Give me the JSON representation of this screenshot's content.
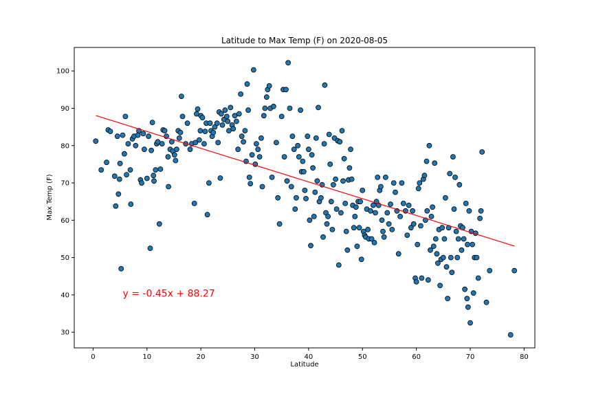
{
  "chart_data": {
    "type": "scatter",
    "title": "Latitude to Max Temp (F) on 2020-08-05",
    "xlabel": "Latitude",
    "ylabel": "Max Temp (F)",
    "xlim": [
      -3.5,
      82
    ],
    "ylim": [
      25.8,
      106.3
    ],
    "xticks": [
      0,
      10,
      20,
      30,
      40,
      50,
      60,
      70,
      80
    ],
    "yticks": [
      30,
      40,
      50,
      60,
      70,
      80,
      90,
      100
    ],
    "grid": false,
    "marker_color": "#1f77b4",
    "marker_edge": "#000000",
    "regression": {
      "equation": "y = -0.45x + 88.27",
      "slope": -0.45,
      "intercept": 88.27,
      "x_range": [
        0.5,
        78.2
      ],
      "color": "#ff0000",
      "label_x": 5.5,
      "label_y": 39.5
    },
    "points": [
      [
        0.5,
        81.2
      ],
      [
        1.5,
        73.5
      ],
      [
        2.5,
        75.5
      ],
      [
        2.8,
        84.2
      ],
      [
        3.2,
        83.8
      ],
      [
        4.0,
        71.8
      ],
      [
        4.2,
        63.8
      ],
      [
        4.5,
        82.5
      ],
      [
        4.7,
        67.0
      ],
      [
        4.9,
        71.0
      ],
      [
        5.0,
        75.2
      ],
      [
        5.2,
        47.0
      ],
      [
        5.5,
        82.8
      ],
      [
        5.8,
        77.8
      ],
      [
        6.0,
        87.8
      ],
      [
        6.2,
        72.2
      ],
      [
        6.5,
        80.5
      ],
      [
        6.9,
        73.5
      ],
      [
        7.0,
        64.3
      ],
      [
        7.3,
        81.8
      ],
      [
        7.6,
        82.5
      ],
      [
        7.9,
        80.0
      ],
      [
        8.3,
        82.8
      ],
      [
        8.5,
        84.0
      ],
      [
        8.8,
        70.8
      ],
      [
        9.0,
        70.0
      ],
      [
        9.3,
        83.2
      ],
      [
        9.5,
        79.0
      ],
      [
        10.0,
        71.2
      ],
      [
        10.3,
        82.5
      ],
      [
        10.6,
        52.5
      ],
      [
        10.8,
        78.7
      ],
      [
        11.0,
        86.2
      ],
      [
        11.2,
        72.0
      ],
      [
        11.3,
        70.5
      ],
      [
        11.6,
        73.5
      ],
      [
        11.8,
        80.5
      ],
      [
        12.0,
        81.0
      ],
      [
        12.3,
        59.0
      ],
      [
        12.5,
        73.7
      ],
      [
        12.8,
        80.5
      ],
      [
        13.0,
        84.2
      ],
      [
        13.3,
        84.0
      ],
      [
        13.6,
        82.5
      ],
      [
        13.9,
        77.0
      ],
      [
        14.0,
        69.0
      ],
      [
        14.3,
        79.0
      ],
      [
        14.6,
        81.0
      ],
      [
        14.8,
        78.5
      ],
      [
        15.1,
        77.5
      ],
      [
        15.3,
        76.0
      ],
      [
        15.5,
        79.0
      ],
      [
        15.8,
        84.0
      ],
      [
        16.0,
        82.0
      ],
      [
        16.2,
        83.5
      ],
      [
        16.4,
        93.2
      ],
      [
        16.6,
        87.8
      ],
      [
        17.2,
        80.5
      ],
      [
        17.5,
        86.0
      ],
      [
        18.0,
        79.0
      ],
      [
        18.3,
        80.5
      ],
      [
        18.8,
        64.5
      ],
      [
        19.0,
        80.8
      ],
      [
        19.2,
        88.5
      ],
      [
        19.4,
        89.8
      ],
      [
        19.7,
        81.5
      ],
      [
        19.9,
        84.0
      ],
      [
        20.0,
        88.0
      ],
      [
        20.3,
        87.5
      ],
      [
        20.6,
        80.5
      ],
      [
        20.8,
        83.8
      ],
      [
        21.0,
        86.0
      ],
      [
        21.2,
        61.5
      ],
      [
        21.5,
        70.0
      ],
      [
        21.7,
        86.0
      ],
      [
        21.9,
        84.0
      ],
      [
        22.1,
        82.5
      ],
      [
        22.3,
        83.5
      ],
      [
        22.6,
        85.0
      ],
      [
        23.0,
        86.0
      ],
      [
        23.2,
        80.8
      ],
      [
        23.4,
        89.0
      ],
      [
        23.6,
        71.3
      ],
      [
        23.8,
        88.5
      ],
      [
        24.0,
        85.5
      ],
      [
        24.3,
        87.0
      ],
      [
        24.5,
        89.5
      ],
      [
        24.8,
        87.8
      ],
      [
        25.0,
        86.5
      ],
      [
        25.2,
        84.0
      ],
      [
        25.5,
        90.2
      ],
      [
        25.8,
        85.5
      ],
      [
        26.0,
        84.5
      ],
      [
        26.3,
        88.0
      ],
      [
        26.6,
        86.5
      ],
      [
        26.9,
        79.0
      ],
      [
        27.1,
        88.5
      ],
      [
        27.4,
        93.8
      ],
      [
        27.6,
        82.5
      ],
      [
        27.9,
        81.0
      ],
      [
        28.2,
        84.0
      ],
      [
        28.4,
        75.8
      ],
      [
        28.6,
        96.5
      ],
      [
        28.8,
        89.5
      ],
      [
        29.0,
        71.5
      ],
      [
        29.2,
        69.8
      ],
      [
        29.5,
        77.5
      ],
      [
        29.8,
        100.3
      ],
      [
        30.1,
        75.0
      ],
      [
        30.3,
        80.5
      ],
      [
        30.6,
        79.0
      ],
      [
        30.9,
        77.0
      ],
      [
        31.2,
        82.0
      ],
      [
        31.4,
        69.0
      ],
      [
        31.7,
        88.0
      ],
      [
        31.9,
        90.0
      ],
      [
        32.2,
        93.0
      ],
      [
        32.4,
        95.0
      ],
      [
        32.7,
        96.0
      ],
      [
        32.9,
        90.0
      ],
      [
        33.2,
        71.5
      ],
      [
        33.5,
        90.5
      ],
      [
        34.0,
        80.8
      ],
      [
        34.3,
        66.0
      ],
      [
        34.6,
        59.0
      ],
      [
        35.0,
        87.8
      ],
      [
        35.3,
        95.0
      ],
      [
        35.5,
        77.0
      ],
      [
        35.8,
        95.0
      ],
      [
        36.0,
        70.5
      ],
      [
        36.2,
        102.2
      ],
      [
        36.5,
        90.0
      ],
      [
        36.8,
        69.0
      ],
      [
        37.0,
        82.5
      ],
      [
        37.3,
        79.0
      ],
      [
        37.5,
        63.0
      ],
      [
        37.7,
        66.0
      ],
      [
        38.0,
        80.0
      ],
      [
        38.2,
        77.0
      ],
      [
        38.5,
        89.5
      ],
      [
        38.7,
        73.0
      ],
      [
        38.9,
        75.8
      ],
      [
        39.1,
        73.0
      ],
      [
        39.3,
        68.0
      ],
      [
        39.5,
        65.8
      ],
      [
        39.8,
        82.5
      ],
      [
        40.0,
        79.0
      ],
      [
        40.2,
        60.0
      ],
      [
        40.4,
        53.2
      ],
      [
        40.6,
        77.5
      ],
      [
        40.8,
        74.0
      ],
      [
        41.0,
        61.0
      ],
      [
        41.2,
        67.5
      ],
      [
        41.4,
        82.0
      ],
      [
        41.6,
        70.5
      ],
      [
        41.8,
        90.2
      ],
      [
        42.0,
        65.0
      ],
      [
        42.3,
        66.0
      ],
      [
        42.5,
        69.5
      ],
      [
        42.7,
        55.5
      ],
      [
        42.9,
        80.5
      ],
      [
        43.0,
        96.2
      ],
      [
        43.2,
        62.0
      ],
      [
        43.4,
        59.0
      ],
      [
        43.6,
        61.0
      ],
      [
        43.8,
        83.0
      ],
      [
        44.0,
        75.0
      ],
      [
        44.2,
        65.0
      ],
      [
        44.4,
        57.5
      ],
      [
        44.6,
        69.5
      ],
      [
        44.8,
        82.0
      ],
      [
        45.0,
        71.0
      ],
      [
        45.2,
        63.0
      ],
      [
        45.4,
        81.3
      ],
      [
        45.6,
        48.0
      ],
      [
        45.8,
        81.0
      ],
      [
        46.0,
        62.0
      ],
      [
        46.2,
        84.0
      ],
      [
        46.4,
        70.5
      ],
      [
        46.6,
        76.5
      ],
      [
        46.8,
        64.5
      ],
      [
        47.0,
        57.0
      ],
      [
        47.2,
        52.0
      ],
      [
        47.4,
        70.8
      ],
      [
        47.6,
        74.0
      ],
      [
        47.8,
        79.0
      ],
      [
        48.0,
        71.0
      ],
      [
        48.2,
        64.0
      ],
      [
        48.4,
        58.0
      ],
      [
        48.6,
        61.0
      ],
      [
        48.8,
        63.5
      ],
      [
        49.0,
        53.0
      ],
      [
        49.2,
        65.0
      ],
      [
        49.4,
        58.0
      ],
      [
        49.6,
        65.0
      ],
      [
        49.8,
        49.5
      ],
      [
        50.0,
        68.0
      ],
      [
        50.2,
        57.0
      ],
      [
        50.4,
        56.0
      ],
      [
        50.6,
        55.5
      ],
      [
        50.8,
        63.0
      ],
      [
        51.0,
        57.5
      ],
      [
        51.2,
        55.0
      ],
      [
        51.5,
        62.5
      ],
      [
        51.7,
        55.0
      ],
      [
        52.0,
        64.0
      ],
      [
        52.2,
        54.0
      ],
      [
        52.4,
        62.0
      ],
      [
        52.6,
        65.0
      ],
      [
        52.8,
        71.5
      ],
      [
        53.0,
        64.0
      ],
      [
        53.2,
        68.0
      ],
      [
        53.4,
        69.0
      ],
      [
        53.6,
        60.0
      ],
      [
        53.8,
        57.0
      ],
      [
        54.0,
        55.5
      ],
      [
        54.3,
        71.5
      ],
      [
        54.6,
        62.0
      ],
      [
        54.9,
        59.0
      ],
      [
        55.2,
        64.3
      ],
      [
        55.5,
        57.5
      ],
      [
        55.8,
        70.0
      ],
      [
        56.1,
        67.5
      ],
      [
        56.4,
        62.5
      ],
      [
        56.7,
        51.0
      ],
      [
        57.0,
        61.0
      ],
      [
        57.3,
        70.0
      ],
      [
        57.6,
        64.5
      ],
      [
        58.0,
        62.5
      ],
      [
        58.3,
        56.0
      ],
      [
        58.6,
        64.0
      ],
      [
        59.0,
        58.0
      ],
      [
        59.3,
        62.5
      ],
      [
        59.5,
        59.0
      ],
      [
        59.8,
        44.5
      ],
      [
        60.0,
        43.5
      ],
      [
        60.2,
        53.5
      ],
      [
        60.4,
        68.5
      ],
      [
        60.6,
        70.0
      ],
      [
        60.8,
        58.5
      ],
      [
        61.0,
        44.5
      ],
      [
        61.3,
        71.0
      ],
      [
        61.5,
        72.0
      ],
      [
        61.7,
        60.0
      ],
      [
        61.9,
        75.8
      ],
      [
        62.0,
        62.5
      ],
      [
        62.2,
        44.0
      ],
      [
        62.4,
        80.0
      ],
      [
        62.6,
        52.0
      ],
      [
        62.8,
        61.0
      ],
      [
        63.0,
        63.5
      ],
      [
        63.2,
        53.0
      ],
      [
        63.4,
        75.3
      ],
      [
        63.6,
        55.0
      ],
      [
        63.8,
        51.0
      ],
      [
        64.0,
        48.5
      ],
      [
        64.2,
        57.5
      ],
      [
        64.4,
        42.5
      ],
      [
        64.6,
        49.5
      ],
      [
        64.8,
        58.0
      ],
      [
        65.0,
        50.0
      ],
      [
        65.2,
        55.0
      ],
      [
        65.4,
        66.0
      ],
      [
        65.6,
        47.5
      ],
      [
        65.8,
        39.0
      ],
      [
        66.0,
        58.0
      ],
      [
        66.2,
        72.5
      ],
      [
        66.4,
        50.0
      ],
      [
        66.6,
        46.0
      ],
      [
        66.8,
        77.0
      ],
      [
        67.0,
        63.0
      ],
      [
        67.2,
        71.5
      ],
      [
        67.4,
        57.0
      ],
      [
        67.6,
        50.0
      ],
      [
        67.8,
        55.0
      ],
      [
        68.0,
        69.5
      ],
      [
        68.2,
        58.5
      ],
      [
        68.4,
        52.0
      ],
      [
        68.6,
        58.0
      ],
      [
        68.8,
        55.0
      ],
      [
        69.0,
        41.5
      ],
      [
        69.2,
        64.5
      ],
      [
        69.4,
        39.0
      ],
      [
        69.5,
        53.5
      ],
      [
        69.6,
        36.7
      ],
      [
        69.8,
        62.5
      ],
      [
        70.0,
        32.5
      ],
      [
        70.2,
        57.0
      ],
      [
        70.4,
        53.5
      ],
      [
        70.6,
        40.5
      ],
      [
        70.8,
        50.0
      ],
      [
        71.0,
        56.5
      ],
      [
        71.2,
        50.0
      ],
      [
        71.5,
        44.5
      ],
      [
        71.8,
        60.5
      ],
      [
        72.0,
        62.5
      ],
      [
        72.2,
        78.3
      ],
      [
        73.0,
        38.0
      ],
      [
        73.6,
        46.5
      ],
      [
        77.5,
        29.3
      ],
      [
        78.2,
        46.5
      ]
    ]
  }
}
